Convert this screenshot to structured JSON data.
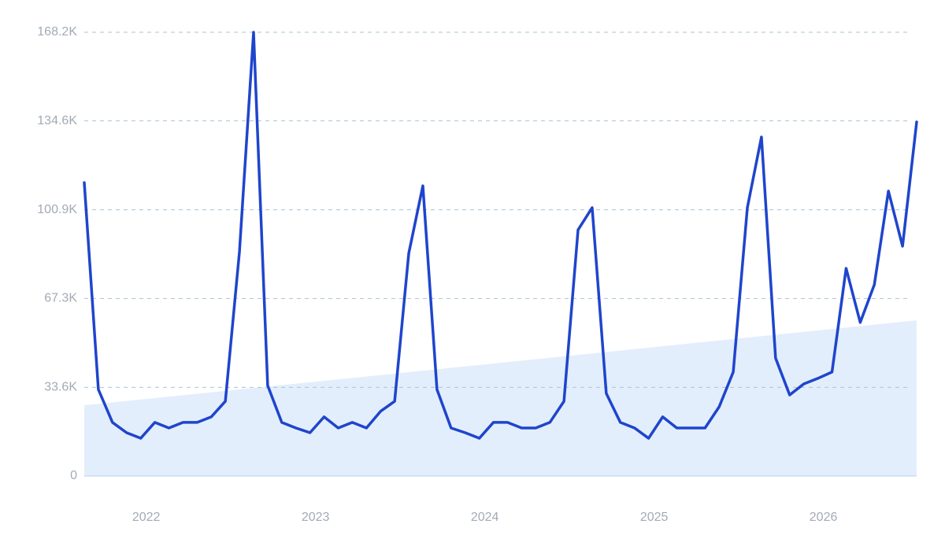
{
  "chart_data": {
    "type": "line",
    "categories": [
      null,
      null,
      null,
      null,
      "2022",
      null,
      null,
      null,
      null,
      null,
      null,
      null,
      null,
      null,
      null,
      null,
      "2023",
      null,
      null,
      null,
      null,
      null,
      null,
      null,
      null,
      null,
      null,
      null,
      "2024",
      null,
      null,
      null,
      null,
      null,
      null,
      null,
      null,
      null,
      null,
      null,
      "2025",
      null,
      null,
      null,
      null,
      null,
      null,
      null,
      null,
      null,
      null,
      null,
      "2026",
      null,
      null,
      null,
      null,
      null,
      null,
      null
    ],
    "series": [
      {
        "color": "#1f45cc",
        "values": [
          111.2,
          32.8,
          20.3,
          16.4,
          14.3,
          20.3,
          18.2,
          20.3,
          20.3,
          22.4,
          28.3,
          85,
          168.2,
          34.3,
          20.3,
          18.2,
          16.4,
          22.4,
          18.2,
          20.3,
          18.2,
          24.5,
          28.3,
          84.4,
          110,
          32.8,
          18.2,
          16.4,
          14.3,
          20.3,
          20.3,
          18.2,
          18.2,
          20.3,
          28.3,
          93.3,
          101.7,
          31.3,
          20.3,
          18.2,
          14.3,
          22.4,
          18.2,
          18.2,
          18.2,
          26.2,
          39.4,
          101.7,
          128.5,
          44.7,
          30.7,
          34.9,
          37,
          39.4,
          78.7,
          58.2,
          72.5,
          108,
          87.1,
          134.2
        ]
      }
    ],
    "trend": {
      "start": 26.8,
      "end": 59.0,
      "color": "#e3eefc"
    },
    "ylim": [
      0,
      168.2
    ],
    "yticks": [
      0,
      {
        "value": 33.6,
        "label": "33.6K"
      },
      {
        "value": 67.3,
        "label": "67.3K"
      },
      {
        "value": 100.9,
        "label": "100.9K"
      },
      {
        "value": 134.6,
        "label": "134.6K"
      },
      {
        "value": 168.2,
        "label": "168.2K"
      }
    ],
    "grid": true
  }
}
